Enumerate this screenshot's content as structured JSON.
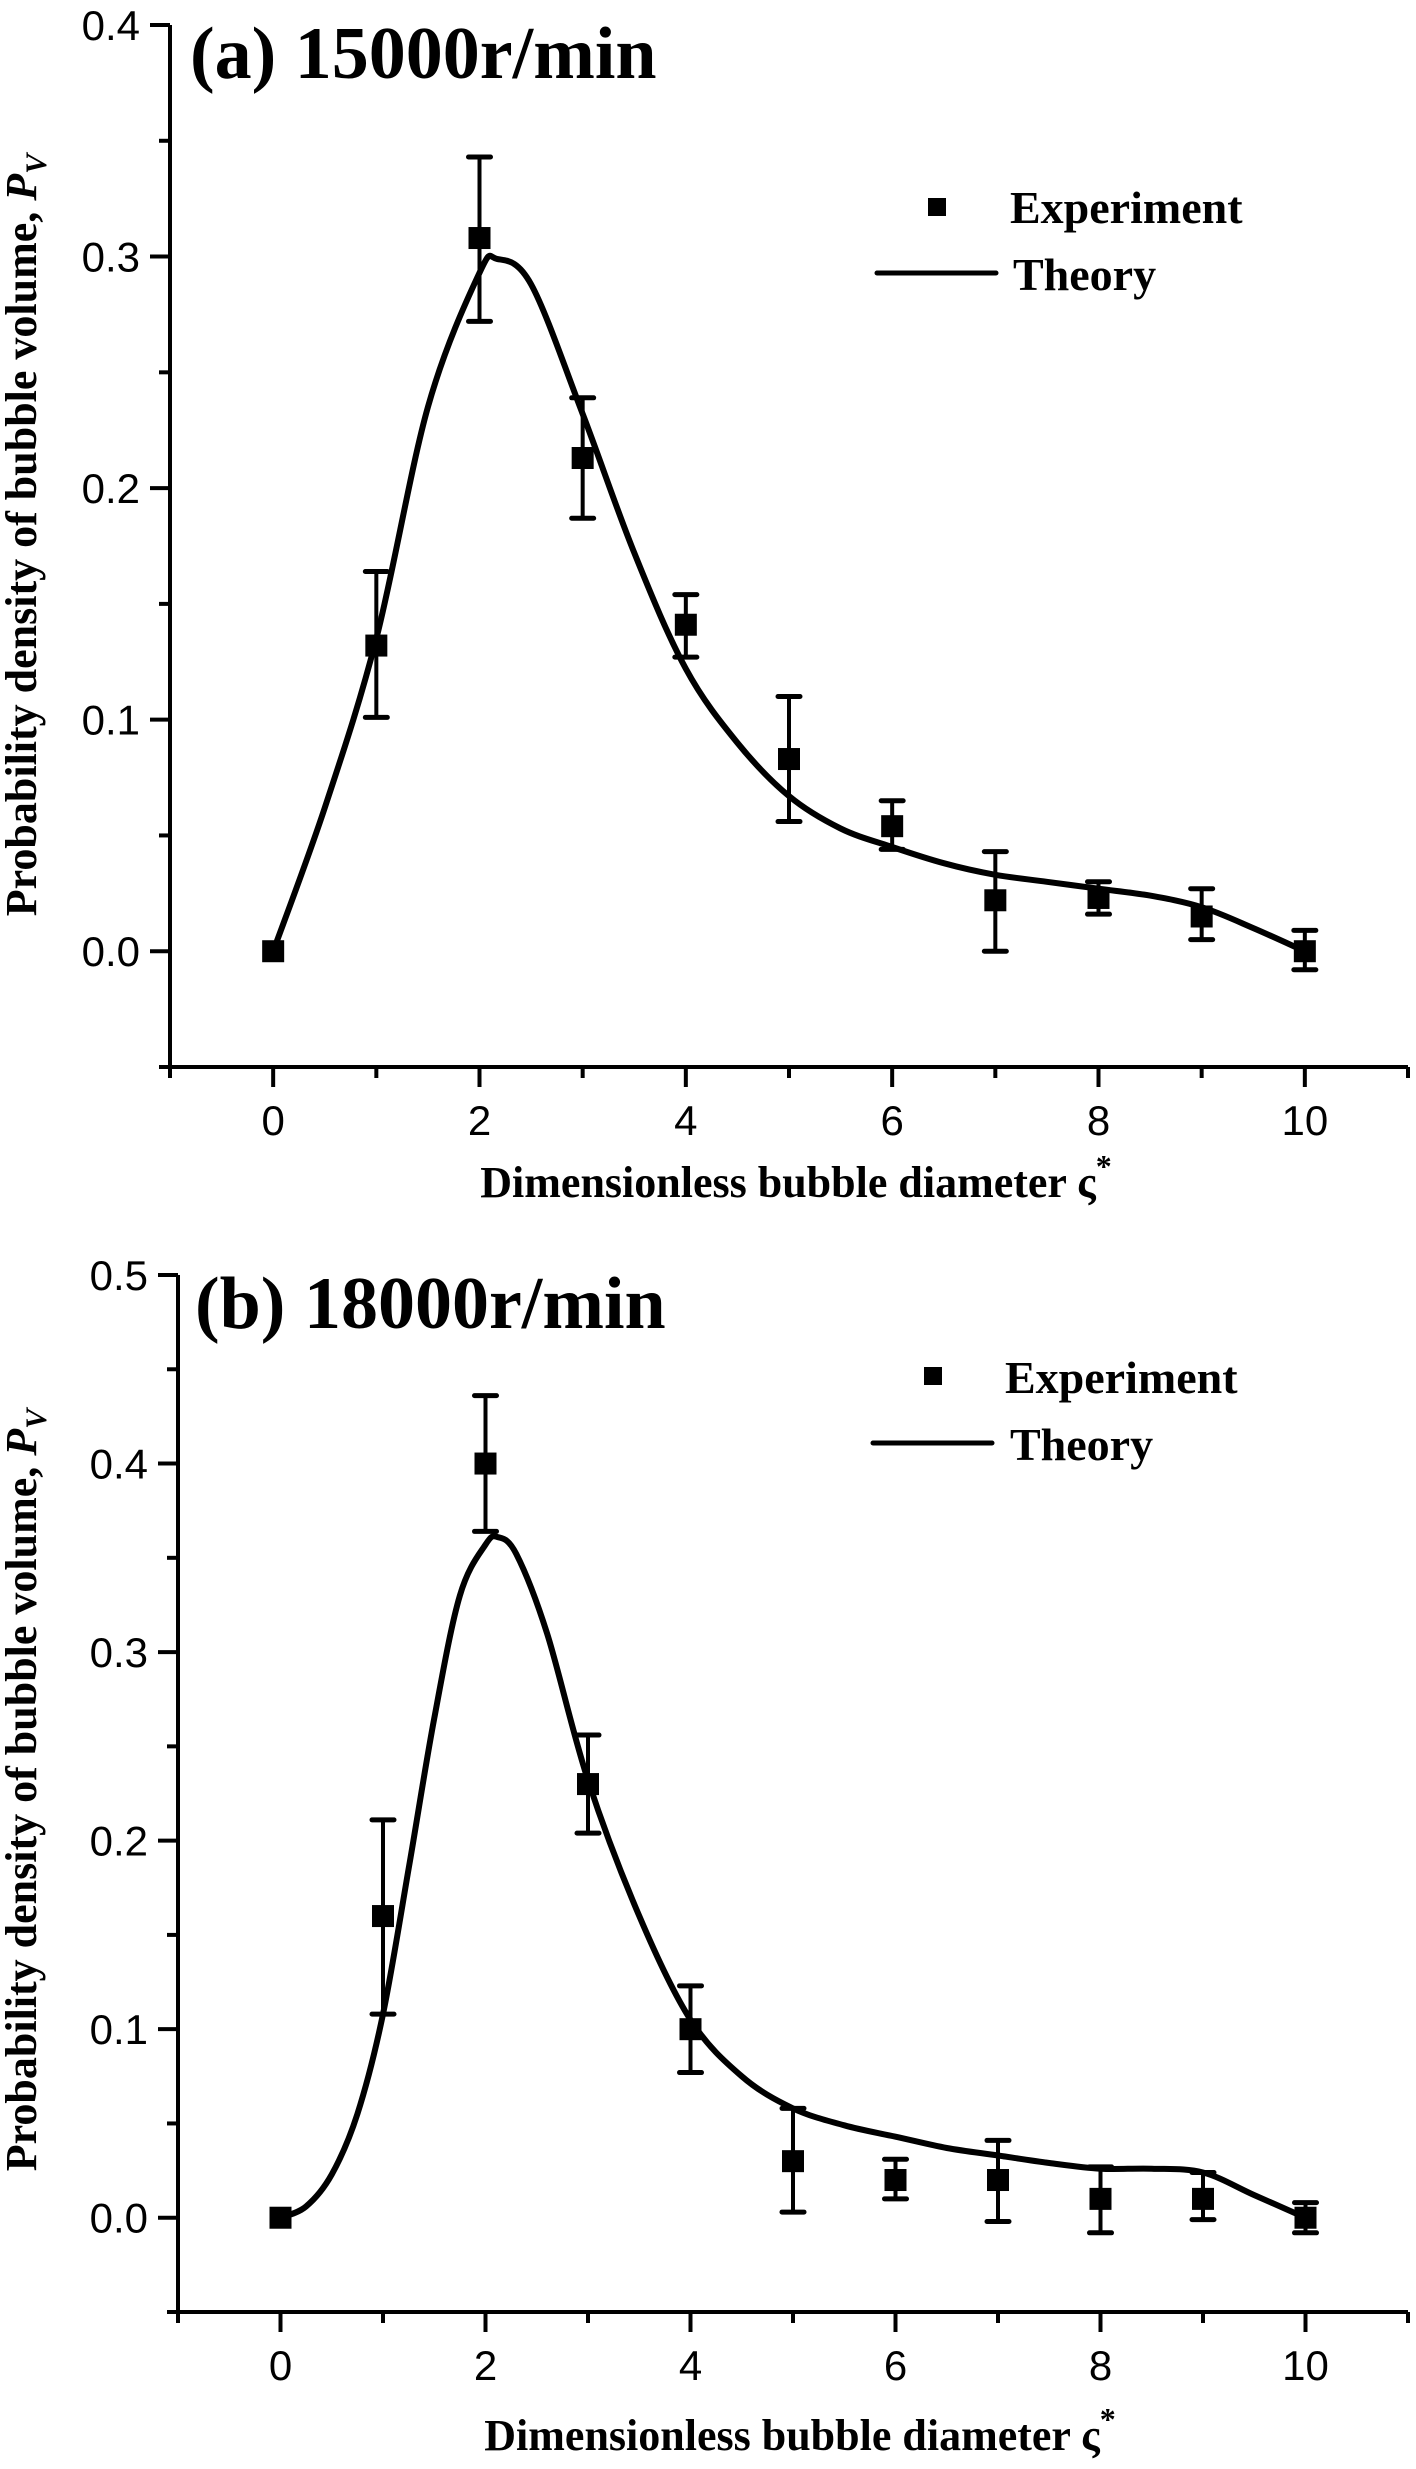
{
  "chart_data": [
    {
      "type": "scatter",
      "title": "(a) 15000r/min",
      "xlabel": "Dimensionless bubble diameter ς*",
      "xlabel_main": "Dimensionless bubble diameter ς",
      "xlabel_sup": "*",
      "ylabel": "Probability density of bubble volume, P_V",
      "ylabel_main": "Probability density of bubble volume, ",
      "ylabel_var": "P",
      "ylabel_sub": "V",
      "xlim": [
        -1,
        11
      ],
      "ylim": [
        -0.05,
        0.4
      ],
      "x_ticks": [
        0,
        2,
        4,
        6,
        8,
        10
      ],
      "x_tick_labels": [
        "0",
        "2",
        "4",
        "6",
        "8",
        "10"
      ],
      "x_minor_ticks": [
        -1,
        1,
        3,
        5,
        7,
        9,
        11
      ],
      "y_ticks": [
        0.0,
        0.1,
        0.2,
        0.3,
        0.4
      ],
      "y_tick_labels": [
        "0.0",
        "0.1",
        "0.2",
        "0.3",
        "0.4"
      ],
      "y_minor_ticks": [
        -0.05,
        0.05,
        0.15,
        0.25,
        0.35
      ],
      "grid": false,
      "legend_position": "top-right",
      "series": [
        {
          "name": "Experiment",
          "kind": "scatter-errorbar",
          "marker": "square",
          "color": "#000000",
          "x": [
            0,
            1,
            2,
            3,
            4,
            5,
            6,
            7,
            8,
            9,
            10
          ],
          "y": [
            0.0,
            0.132,
            0.308,
            0.213,
            0.141,
            0.083,
            0.054,
            0.022,
            0.023,
            0.015,
            0.0
          ],
          "y_err_low": [
            0.0,
            0.101,
            0.272,
            0.187,
            0.127,
            0.056,
            0.044,
            0.0,
            0.016,
            0.005,
            -0.008
          ],
          "y_err_high": [
            0.0,
            0.164,
            0.343,
            0.239,
            0.154,
            0.11,
            0.065,
            0.043,
            0.03,
            0.027,
            0.009
          ]
        },
        {
          "name": "Theory",
          "kind": "line",
          "color": "#000000",
          "x": [
            0,
            0.5,
            1,
            1.5,
            2,
            2.17,
            2.5,
            3,
            3.5,
            4,
            4.5,
            5,
            5.5,
            6,
            6.5,
            7,
            7.5,
            8,
            8.5,
            9,
            9.5,
            10
          ],
          "y": [
            0.0,
            0.062,
            0.135,
            0.235,
            0.293,
            0.299,
            0.288,
            0.232,
            0.172,
            0.122,
            0.09,
            0.067,
            0.053,
            0.045,
            0.038,
            0.033,
            0.03,
            0.027,
            0.024,
            0.019,
            0.01,
            0.0
          ]
        }
      ]
    },
    {
      "type": "scatter",
      "title": "(b) 18000r/min",
      "xlabel": "Dimensionless bubble diameter ς*",
      "xlabel_main": "Dimensionless bubble diameter ς",
      "xlabel_sup": "*",
      "ylabel": "Probability density of bubble volume, P_V",
      "ylabel_main": "Probability density of bubble volume, ",
      "ylabel_var": "P",
      "ylabel_sub": "V",
      "xlim": [
        -1,
        11
      ],
      "ylim": [
        -0.05,
        0.5
      ],
      "x_ticks": [
        0,
        2,
        4,
        6,
        8,
        10
      ],
      "x_tick_labels": [
        "0",
        "2",
        "4",
        "6",
        "8",
        "10"
      ],
      "x_minor_ticks": [
        -1,
        1,
        3,
        5,
        7,
        9,
        11
      ],
      "y_ticks": [
        0.0,
        0.1,
        0.2,
        0.3,
        0.4,
        0.5
      ],
      "y_tick_labels": [
        "0.0",
        "0.1",
        "0.2",
        "0.3",
        "0.4",
        "0.5"
      ],
      "y_minor_ticks": [
        -0.05,
        0.05,
        0.15,
        0.25,
        0.35,
        0.45
      ],
      "grid": false,
      "legend_position": "top-right",
      "series": [
        {
          "name": "Experiment",
          "kind": "scatter-errorbar",
          "marker": "square",
          "color": "#000000",
          "x": [
            0,
            1,
            2,
            3,
            4,
            5,
            6,
            7,
            8,
            9,
            10
          ],
          "y": [
            0.0,
            0.16,
            0.4,
            0.23,
            0.1,
            0.03,
            0.02,
            0.02,
            0.01,
            0.01,
            0.0
          ],
          "y_err_low": [
            0.0,
            0.108,
            0.364,
            0.204,
            0.077,
            0.003,
            0.01,
            -0.002,
            -0.008,
            -0.001,
            -0.008
          ],
          "y_err_high": [
            0.0,
            0.211,
            0.436,
            0.256,
            0.123,
            0.058,
            0.031,
            0.041,
            0.027,
            0.024,
            0.008
          ]
        },
        {
          "name": "Theory",
          "kind": "line",
          "color": "#000000",
          "x": [
            0,
            0.25,
            0.5,
            0.75,
            1,
            1.25,
            1.5,
            1.75,
            2,
            2.12,
            2.3,
            2.6,
            3,
            3.5,
            4,
            4.5,
            5,
            5.5,
            6,
            6.5,
            7,
            7.5,
            8,
            8.5,
            9,
            9.5,
            10
          ],
          "y": [
            0.0,
            0.006,
            0.023,
            0.055,
            0.108,
            0.185,
            0.265,
            0.33,
            0.357,
            0.361,
            0.352,
            0.31,
            0.232,
            0.16,
            0.105,
            0.075,
            0.058,
            0.049,
            0.043,
            0.037,
            0.033,
            0.029,
            0.026,
            0.026,
            0.024,
            0.012,
            0.0
          ]
        }
      ]
    }
  ]
}
